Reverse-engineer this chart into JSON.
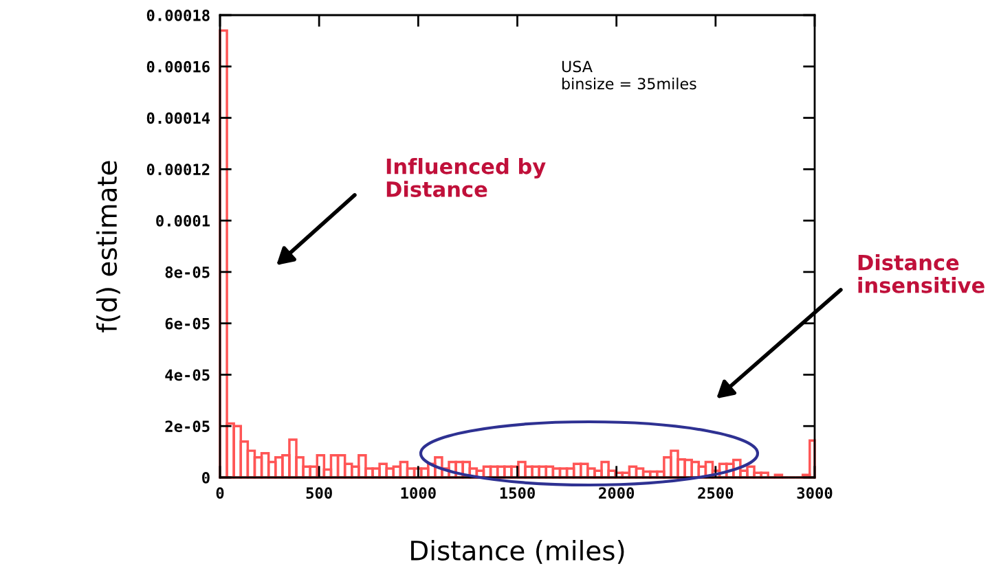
{
  "chart_data": {
    "type": "histogram",
    "xlabel": "Distance (miles)",
    "ylabel": "f(d) estimate",
    "color": "#ff5555",
    "bins": [
      0,
      35,
      70,
      105,
      140,
      175,
      210,
      245,
      280,
      315,
      350,
      385,
      420,
      455,
      490,
      525,
      560,
      595,
      630,
      665,
      700,
      735,
      770,
      805,
      840,
      875,
      910,
      945,
      980,
      1015,
      1050,
      1085,
      1120,
      1155,
      1190,
      1225,
      1260,
      1295,
      1330,
      1365,
      1400,
      1435,
      1470,
      1505,
      1540,
      1575,
      1610,
      1645,
      1680,
      1715,
      1750,
      1785,
      1820,
      1855,
      1890,
      1925,
      1960,
      1995,
      2030,
      2065,
      2100,
      2135,
      2170,
      2205,
      2240,
      2275,
      2310,
      2345,
      2380,
      2415,
      2450,
      2485,
      2520,
      2555,
      2590,
      2625,
      2660,
      2695,
      2730,
      2765,
      2800,
      2835,
      2870,
      2905,
      2940,
      2975,
      3000
    ],
    "values": [
      0.000174,
      2.1e-05,
      2e-05,
      1.4e-05,
      1.04e-05,
      7.8e-06,
      9.4e-06,
      6e-06,
      7.8e-06,
      8.6e-06,
      1.47e-05,
      7.8e-06,
      4.2e-06,
      4.2e-06,
      8.6e-06,
      3.1e-06,
      8.6e-06,
      8.6e-06,
      5.3e-06,
      4.2e-06,
      8.6e-06,
      3.5e-06,
      3.5e-06,
      5.3e-06,
      3.5e-06,
      4.2e-06,
      6e-06,
      3.5e-06,
      3.5e-06,
      3.5e-06,
      5.3e-06,
      7.8e-06,
      3.5e-06,
      6e-06,
      6e-06,
      6e-06,
      3.5e-06,
      2.6e-06,
      4.2e-06,
      4.2e-06,
      4.2e-06,
      4.2e-06,
      4.2e-06,
      6e-06,
      4.2e-06,
      4.2e-06,
      4.2e-06,
      4.2e-06,
      3.5e-06,
      3.5e-06,
      3.5e-06,
      5.3e-06,
      5.3e-06,
      3.5e-06,
      2.6e-06,
      6e-06,
      2.6e-06,
      1.8e-06,
      1.8e-06,
      4.2e-06,
      3.5e-06,
      2.3e-06,
      2.3e-06,
      2.3e-06,
      7.8e-06,
      1.04e-05,
      7e-06,
      6.8e-06,
      6e-06,
      4.2e-06,
      6e-06,
      2.6e-06,
      5.3e-06,
      5.3e-06,
      6.8e-06,
      2.6e-06,
      4.2e-06,
      1.8e-06,
      1.8e-06,
      0,
      1e-06,
      0,
      0,
      0,
      1e-06,
      1.44e-05
    ],
    "xlim": [
      0,
      3000
    ],
    "xticks": [
      0,
      500,
      1000,
      1500,
      2000,
      2500,
      3000
    ],
    "ylim": [
      0,
      0.00018
    ],
    "yticks": [
      0,
      {
        "value": 2e-05,
        "label": "2e-05"
      },
      {
        "value": 4e-05,
        "label": "4e-05"
      },
      {
        "value": 6e-05,
        "label": "6e-05"
      },
      {
        "value": 8e-05,
        "label": "8e-05"
      },
      {
        "value": 0.0001,
        "label": "0.0001"
      },
      {
        "value": 0.00012,
        "label": "0.00012"
      },
      {
        "value": 0.00014,
        "label": "0.00014"
      },
      {
        "value": 0.00016,
        "label": "0.00016"
      },
      {
        "value": 0.00018,
        "label": "0.00018"
      }
    ],
    "annotations": [
      "USA",
      "binsize = 35miles",
      "Influenced by\nDistance",
      "Distance\ninsensitive"
    ]
  }
}
